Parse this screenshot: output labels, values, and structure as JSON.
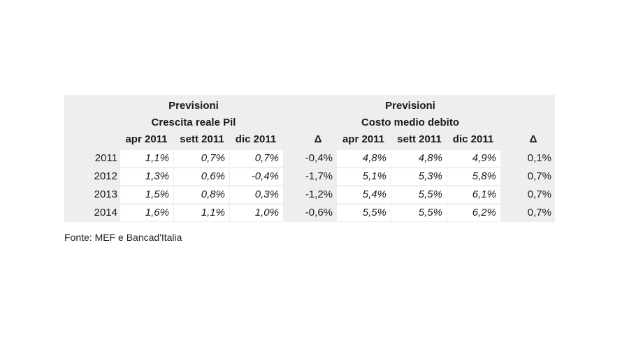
{
  "table": {
    "group1": {
      "title": "Previsioni",
      "subtitle": "Crescita reale Pil"
    },
    "group2": {
      "title": "Previsioni",
      "subtitle": "Costo medio debito"
    },
    "columns": [
      "apr 2011",
      "sett 2011",
      "dic 2011",
      "Δ",
      "apr 2011",
      "sett 2011",
      "dic 2011",
      "Δ"
    ],
    "rows": [
      {
        "year": "2011",
        "values": [
          "1,1%",
          "0,7%",
          "0,7%",
          "-0,4%",
          "4,8%",
          "4,8%",
          "4,9%",
          "0,1%"
        ]
      },
      {
        "year": "2012",
        "values": [
          "1,3%",
          "0,6%",
          "-0,4%",
          "-1,7%",
          "5,1%",
          "5,3%",
          "5,8%",
          "0,7%"
        ]
      },
      {
        "year": "2013",
        "values": [
          "1,5%",
          "0,8%",
          "0,3%",
          "-1,2%",
          "5,4%",
          "5,5%",
          "6,1%",
          "0,7%"
        ]
      },
      {
        "year": "2014",
        "values": [
          "1,6%",
          "1,1%",
          "1,0%",
          "-0,6%",
          "5,5%",
          "5,5%",
          "6,2%",
          "0,7%"
        ]
      }
    ]
  },
  "source": "Fonte: MEF e Bancad'Italia"
}
